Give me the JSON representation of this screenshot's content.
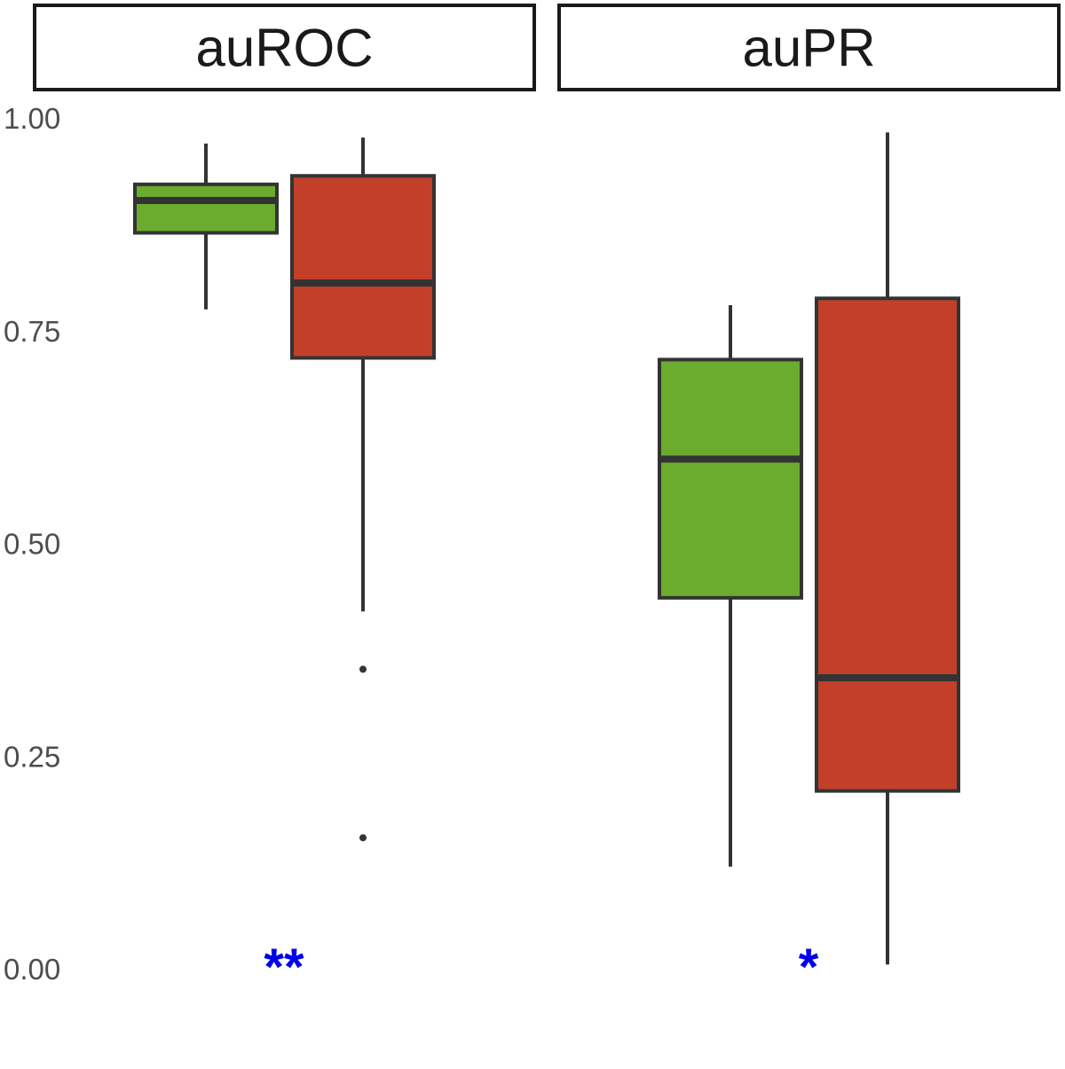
{
  "chart_data": {
    "type": "boxplot",
    "ylim": [
      0,
      1
    ],
    "y_ticks": [
      0,
      0.25,
      0.5,
      0.75,
      1
    ],
    "y_tick_labels": [
      "0.00",
      "0.25",
      "0.50",
      "0.75",
      "1.00"
    ],
    "grid": false,
    "legend": "none",
    "colors": {
      "group_1": "#6bab2e",
      "group_2": "#c23f29",
      "box_stroke": "#333333",
      "strip_stroke": "#1a1a1a",
      "annotation": "#0000ee",
      "tick_text": "#4d4d4d"
    },
    "panels": [
      {
        "title": "auROC",
        "annotation": "**",
        "boxes": [
          {
            "group": "group_1",
            "whisker_low": 0.775,
            "q1": 0.865,
            "median": 0.903,
            "q3": 0.922,
            "whisker_high": 0.97,
            "outliers": []
          },
          {
            "group": "group_2",
            "whisker_low": 0.42,
            "q1": 0.718,
            "median": 0.806,
            "q3": 0.932,
            "whisker_high": 0.977,
            "outliers": [
              0.352,
              0.154
            ]
          }
        ]
      },
      {
        "title": "auPR",
        "annotation": "*",
        "boxes": [
          {
            "group": "group_1",
            "whisker_low": 0.12,
            "q1": 0.436,
            "median": 0.599,
            "q3": 0.716,
            "whisker_high": 0.78,
            "outliers": []
          },
          {
            "group": "group_2",
            "whisker_low": 0.005,
            "q1": 0.209,
            "median": 0.342,
            "q3": 0.788,
            "whisker_high": 0.983,
            "outliers": []
          }
        ]
      }
    ]
  }
}
